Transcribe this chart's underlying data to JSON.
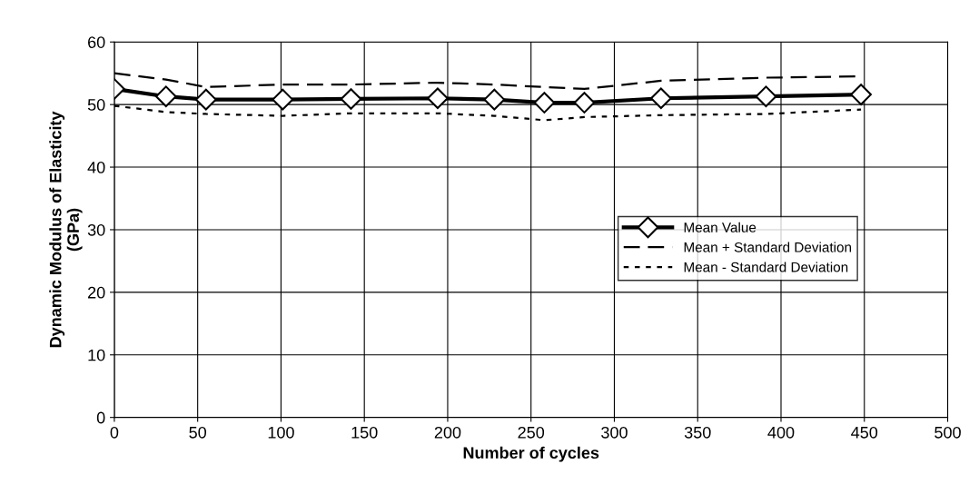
{
  "chart_data": {
    "type": "line",
    "xlabel": "Number of cycles",
    "ylabel": "Dynamic Modulus of Elasticity\n(GPa)",
    "x": [
      0,
      31,
      55,
      101,
      142,
      194,
      228,
      258,
      282,
      328,
      391,
      448
    ],
    "series": [
      {
        "name": "Mean Value",
        "color": "#000000",
        "values": [
          52.5,
          51.3,
          50.8,
          50.8,
          50.9,
          51,
          50.8,
          50.3,
          50.3,
          51,
          51.3,
          51.6
        ],
        "marker": "diamond",
        "line_style": "solid"
      },
      {
        "name": "Mean + Standard Deviation",
        "color": "#000000",
        "values": [
          55,
          54,
          52.8,
          53.2,
          53.2,
          53.5,
          53.2,
          52.8,
          52.5,
          53.8,
          54.3,
          54.5
        ],
        "marker": "none",
        "line_style": "dashed"
      },
      {
        "name": "Mean - Standard Deviation",
        "color": "#000000",
        "values": [
          49.8,
          48.8,
          48.5,
          48.2,
          48.6,
          48.6,
          48.2,
          47.5,
          48,
          48.3,
          48.5,
          49.2
        ],
        "marker": "none",
        "line_style": "dotted"
      }
    ],
    "xlim": [
      0,
      500
    ],
    "xticks": [
      0,
      50,
      100,
      150,
      200,
      250,
      300,
      350,
      400,
      450,
      500
    ],
    "ylim": [
      0,
      60
    ],
    "yticks": [
      0,
      10,
      20,
      30,
      40,
      50,
      60
    ],
    "grid": true,
    "legend": "center right"
  }
}
